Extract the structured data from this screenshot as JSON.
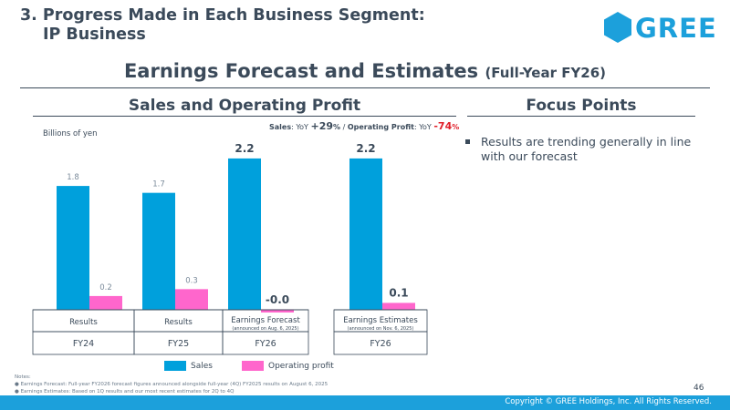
{
  "header": {
    "section_line1": "3. Progress Made in Each Business Segment:",
    "section_line2": "IP Business",
    "title": "Earnings Forecast and Estimates",
    "title_sub": "(Full-Year FY26)",
    "logo_text": "GREE"
  },
  "left_section": {
    "title": "Sales and Operating Profit",
    "growth_sales_label": "Sales",
    "growth_yoy1": ": YoY ",
    "growth_sales_value": "+29",
    "growth_pct1": "%",
    "growth_sep": " / ",
    "growth_op_label": "Operating Profit",
    "growth_yoy2": ": YoY ",
    "growth_op_value": "-74",
    "growth_pct2": "%",
    "unit": "Billions of yen"
  },
  "right_section": {
    "title": "Focus Points",
    "points": [
      "Results are trending generally in line with our forecast"
    ]
  },
  "chart_data": {
    "type": "bar",
    "categories": [
      "Results",
      "Results",
      "Earnings Forecast",
      "Earnings Estimates"
    ],
    "category_notes": [
      "",
      "",
      "(announced on Aug. 6, 2025)",
      "(announced on Nov. 6, 2025)"
    ],
    "periods": [
      "FY24",
      "FY25",
      "FY26",
      "FY26"
    ],
    "series": [
      {
        "name": "Sales",
        "color": "#00a0dc",
        "values": [
          1.8,
          1.7,
          2.2,
          2.2
        ],
        "labels": [
          "1.8",
          "1.7",
          "2.2",
          "2.2"
        ]
      },
      {
        "name": "Operating profit",
        "color": "#ff66cc",
        "values": [
          0.2,
          0.3,
          -0.0,
          0.1
        ],
        "labels": [
          "0.2",
          "0.3",
          "-0.0",
          "0.1"
        ]
      }
    ],
    "ylim": [
      0,
      2.3
    ]
  },
  "legend": {
    "sales": "Sales",
    "op": "Operating profit"
  },
  "notes": {
    "title": "Notes:",
    "items": [
      "Earnings Forecast: Full-year FY2026 forecast figures announced alongside full-year (4Q) FY2025 results on August 6, 2025",
      "Earnings Estimates: Based on 1Q results and our most recent estimates for 2Q to 4Q"
    ]
  },
  "footer": {
    "page": "46",
    "copyright": "Copyright © GREE Holdings, Inc. All Rights Reserved."
  }
}
